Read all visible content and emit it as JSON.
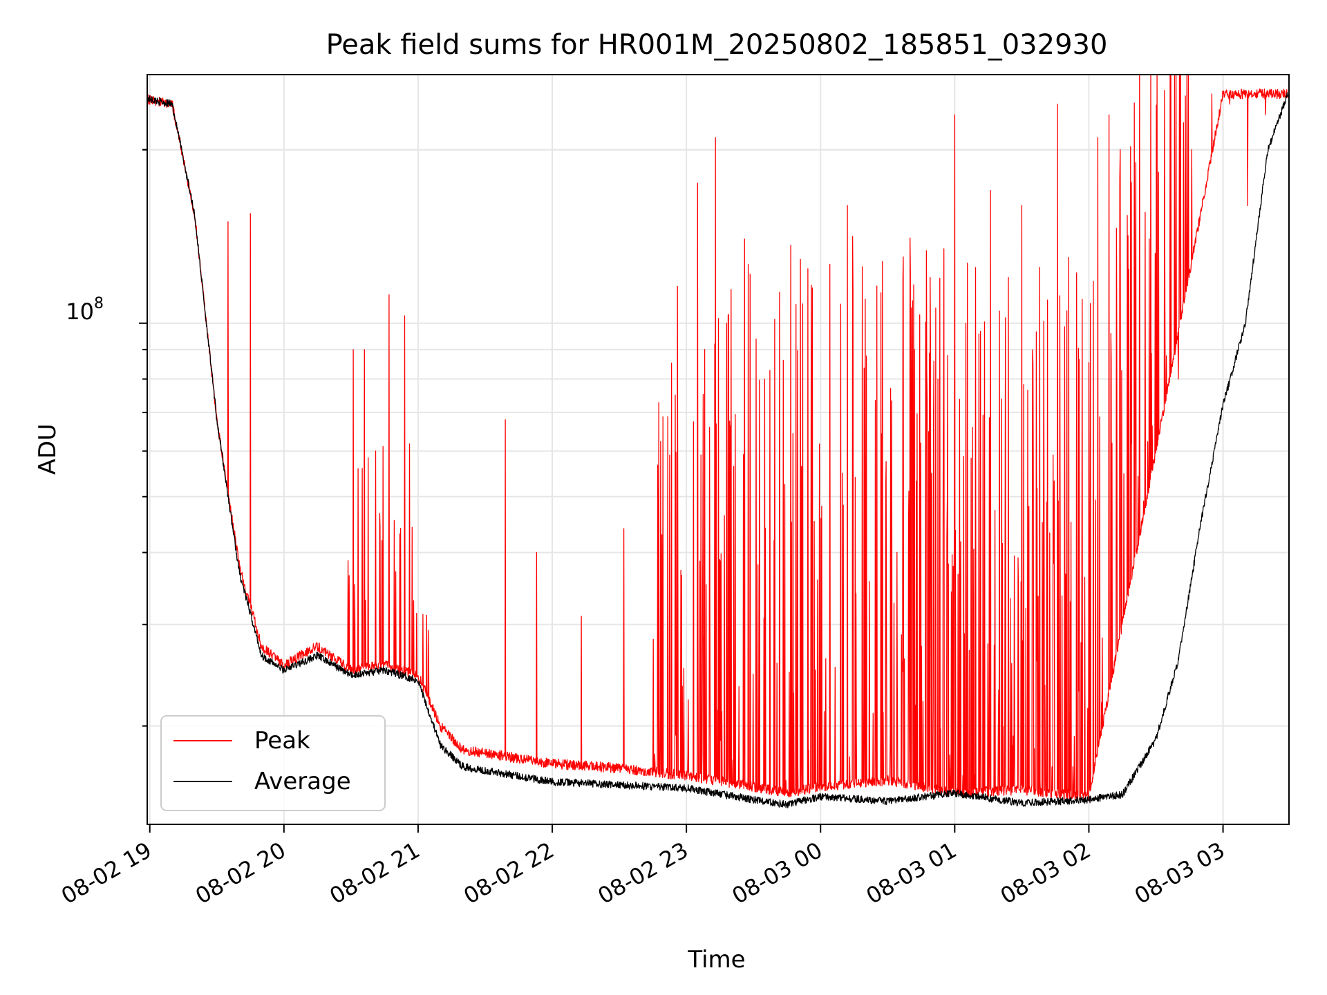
{
  "chart_data": {
    "type": "line",
    "title": "Peak field sums for HR001M_20250802_185851_032930",
    "xlabel": "Time",
    "ylabel": "ADU",
    "y_scale": "log",
    "ylim": [
      13500000,
      270000000
    ],
    "xlim": [
      "2025-08-02 18:58:51",
      "2025-08-03 03:29:30"
    ],
    "x_ticks": [
      "08-02 19",
      "08-02 20",
      "08-02 21",
      "08-02 22",
      "08-02 23",
      "08-03 00",
      "08-03 01",
      "08-03 02",
      "08-03 03"
    ],
    "y_tick_label": "10",
    "y_tick_exponent": "8",
    "grid": true,
    "legend_position": "lower-left",
    "colors": {
      "peak": "#ff0000",
      "average": "#000000",
      "grid": "#e6e6e6"
    },
    "series": [
      {
        "name": "Peak",
        "x": [
          "2025-08-02 18:59",
          "2025-08-02 19:10",
          "2025-08-02 19:20",
          "2025-08-02 19:30",
          "2025-08-02 19:40",
          "2025-08-02 19:50",
          "2025-08-02 20:00",
          "2025-08-02 20:15",
          "2025-08-02 20:30",
          "2025-08-02 20:45",
          "2025-08-02 21:00",
          "2025-08-02 21:10",
          "2025-08-02 21:20",
          "2025-08-02 21:40",
          "2025-08-02 22:00",
          "2025-08-02 22:30",
          "2025-08-02 23:00",
          "2025-08-02 23:30",
          "2025-08-02 23:45",
          "2025-08-03 00:00",
          "2025-08-03 00:30",
          "2025-08-03 01:00",
          "2025-08-03 01:30",
          "2025-08-03 02:00",
          "2025-08-03 02:30",
          "2025-08-03 03:00",
          "2025-08-03 03:29"
        ],
        "values": [
          245000000,
          240000000,
          155000000,
          68000000,
          38000000,
          27500000,
          25500000,
          27500000,
          25000000,
          25500000,
          24500000,
          20000000,
          18200000,
          17700000,
          17200000,
          16900000,
          16400000,
          15700000,
          15300000,
          15700000,
          16100000,
          15300000,
          15500000,
          15100000,
          60000000,
          250000000,
          250000000
        ]
      },
      {
        "name": "Average",
        "x": [
          "2025-08-02 18:59",
          "2025-08-02 19:10",
          "2025-08-02 19:20",
          "2025-08-02 19:30",
          "2025-08-02 19:40",
          "2025-08-02 19:50",
          "2025-08-02 20:00",
          "2025-08-02 20:15",
          "2025-08-02 20:30",
          "2025-08-02 20:45",
          "2025-08-02 21:00",
          "2025-08-02 21:10",
          "2025-08-02 21:20",
          "2025-08-02 21:40",
          "2025-08-02 22:00",
          "2025-08-02 22:30",
          "2025-08-02 23:00",
          "2025-08-02 23:30",
          "2025-08-02 23:45",
          "2025-08-03 00:00",
          "2025-08-03 00:30",
          "2025-08-03 01:00",
          "2025-08-03 01:30",
          "2025-08-03 02:00",
          "2025-08-03 02:15",
          "2025-08-03 02:30",
          "2025-08-03 02:40",
          "2025-08-03 02:50",
          "2025-08-03 03:00",
          "2025-08-03 03:10",
          "2025-08-03 03:20",
          "2025-08-03 03:29"
        ],
        "values": [
          245000000,
          240000000,
          155000000,
          68000000,
          37000000,
          26500000,
          25000000,
          26500000,
          24500000,
          25000000,
          24000000,
          18500000,
          17000000,
          16500000,
          16000000,
          15800000,
          15600000,
          14900000,
          14600000,
          15100000,
          14800000,
          15300000,
          14700000,
          14900000,
          15200000,
          19000000,
          26000000,
          45000000,
          72000000,
          100000000,
          200000000,
          250000000
        ]
      }
    ],
    "peak_spikes": {
      "x": [
        "2025-08-02 19:35",
        "2025-08-02 19:45",
        "2025-08-02 20:31",
        "2025-08-02 20:36",
        "2025-08-02 20:41",
        "2025-08-02 20:47",
        "2025-08-02 20:54",
        "2025-08-02 20:58",
        "2025-08-02 21:39",
        "2025-08-02 21:53",
        "2025-08-02 22:13",
        "2025-08-02 22:32",
        "2025-08-02 22:55",
        "2025-08-02 23:05",
        "2025-08-02 23:13",
        "2025-08-02 23:18",
        "2025-08-02 23:26",
        "2025-08-02 23:35",
        "2025-08-02 23:52",
        "2025-08-03 00:12",
        "2025-08-03 00:20",
        "2025-08-03 00:42",
        "2025-08-03 00:49",
        "2025-08-03 01:00",
        "2025-08-03 01:05",
        "2025-08-03 01:16",
        "2025-08-03 01:20",
        "2025-08-03 01:24",
        "2025-08-03 01:30",
        "2025-08-03 01:38",
        "2025-08-03 01:46",
        "2025-08-03 01:51",
        "2025-08-03 01:57",
        "2025-08-03 02:04",
        "2025-08-03 02:09",
        "2025-08-03 02:14",
        "2025-08-03 02:21",
        "2025-08-03 02:27",
        "2025-08-03 02:34",
        "2025-08-03 02:40",
        "2025-08-03 02:46",
        "2025-08-03 02:55",
        "2025-08-03 03:03",
        "2025-08-03 03:11",
        "2025-08-03 03:19"
      ],
      "values": [
        150000000,
        155000000,
        90000000,
        90000000,
        60000000,
        112000000,
        103000000,
        33000000,
        68000000,
        40000000,
        31000000,
        44000000,
        75000000,
        175000000,
        210000000,
        100000000,
        140000000,
        80000000,
        108000000,
        160000000,
        110000000,
        90000000,
        120000000,
        230000000,
        100000000,
        170000000,
        105000000,
        120000000,
        160000000,
        125000000,
        240000000,
        130000000,
        110000000,
        210000000,
        230000000,
        200000000,
        190000000,
        140000000,
        110000000,
        80000000,
        200000000,
        250000000,
        240000000,
        160000000,
        230000000
      ]
    }
  }
}
